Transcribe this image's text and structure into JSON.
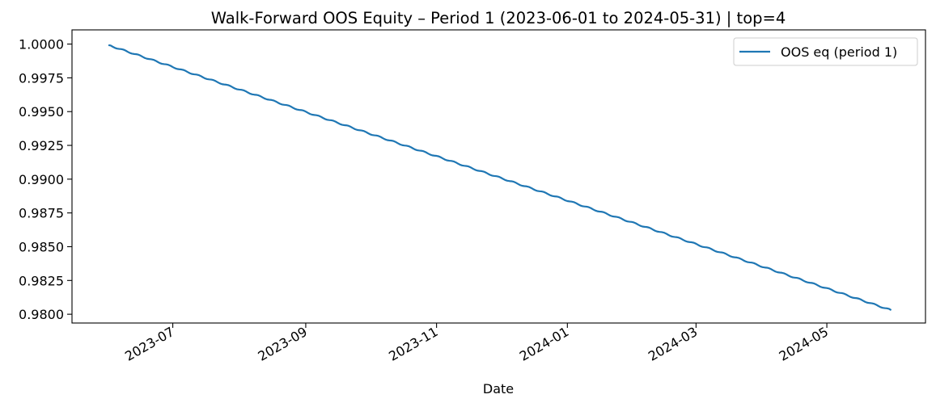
{
  "chart_data": {
    "type": "line",
    "title": "Walk-Forward OOS Equity – Period 1 (2023-06-01 to 2024-05-31) | top=4",
    "xlabel": "Date",
    "ylabel": "",
    "x_range": [
      "2023-05-15",
      "2024-06-16"
    ],
    "ylim": [
      0.97935,
      1.00105
    ],
    "x_ticks": [
      "2023-07-01",
      "2023-09-01",
      "2023-11-01",
      "2024-01-01",
      "2024-03-01",
      "2024-05-01"
    ],
    "x_tick_labels": [
      "2023-07",
      "2023-09",
      "2023-11",
      "2024-01",
      "2024-03",
      "2024-05"
    ],
    "y_ticks": [
      0.98,
      0.9825,
      0.985,
      0.9875,
      0.99,
      0.9925,
      0.995,
      0.9975,
      1.0
    ],
    "y_tick_labels": [
      "0.9800",
      "0.9825",
      "0.9850",
      "0.9875",
      "0.9900",
      "0.9925",
      "0.9950",
      "0.9975",
      "1.0000"
    ],
    "grid": false,
    "legend_position": "top-right",
    "series": [
      {
        "name": "OOS eq (period 1)",
        "color": "#1f77b4",
        "start_date": "2023-06-01",
        "end_date": "2024-05-31",
        "start_value": 0.99992,
        "end_value": 0.9803,
        "shape": "steady decline with small weekly steps"
      }
    ]
  }
}
